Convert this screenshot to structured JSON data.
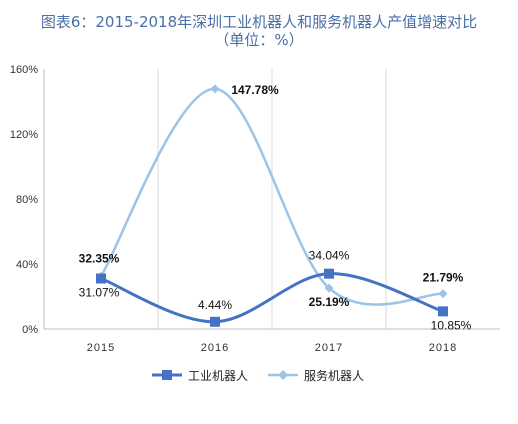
{
  "chart_data": {
    "type": "line",
    "title": "图表6：2015-2018年深圳工业机器人和服务机器人产值增速对比",
    "subtitle": "（单位：%）",
    "categories": [
      "2015",
      "2016",
      "2017",
      "2018"
    ],
    "ylim": [
      0,
      160
    ],
    "y_ticks": [
      "0%",
      "40%",
      "80%",
      "120%",
      "160%"
    ],
    "grid": "vertical",
    "legend_position": "bottom",
    "series": [
      {
        "name": "工业机器人",
        "values": [
          31.07,
          4.44,
          34.04,
          10.85
        ],
        "labels": [
          "31.07%",
          "4.44%",
          "34.04%",
          "10.85%"
        ],
        "color": "#4472c4",
        "marker": "square",
        "label_bold": false
      },
      {
        "name": "服务机器人",
        "values": [
          32.35,
          147.78,
          25.19,
          21.79
        ],
        "labels": [
          "32.35%",
          "147.78%",
          "25.19%",
          "21.79%"
        ],
        "color": "#9dc3e6",
        "marker": "diamond",
        "label_bold": true
      }
    ]
  }
}
